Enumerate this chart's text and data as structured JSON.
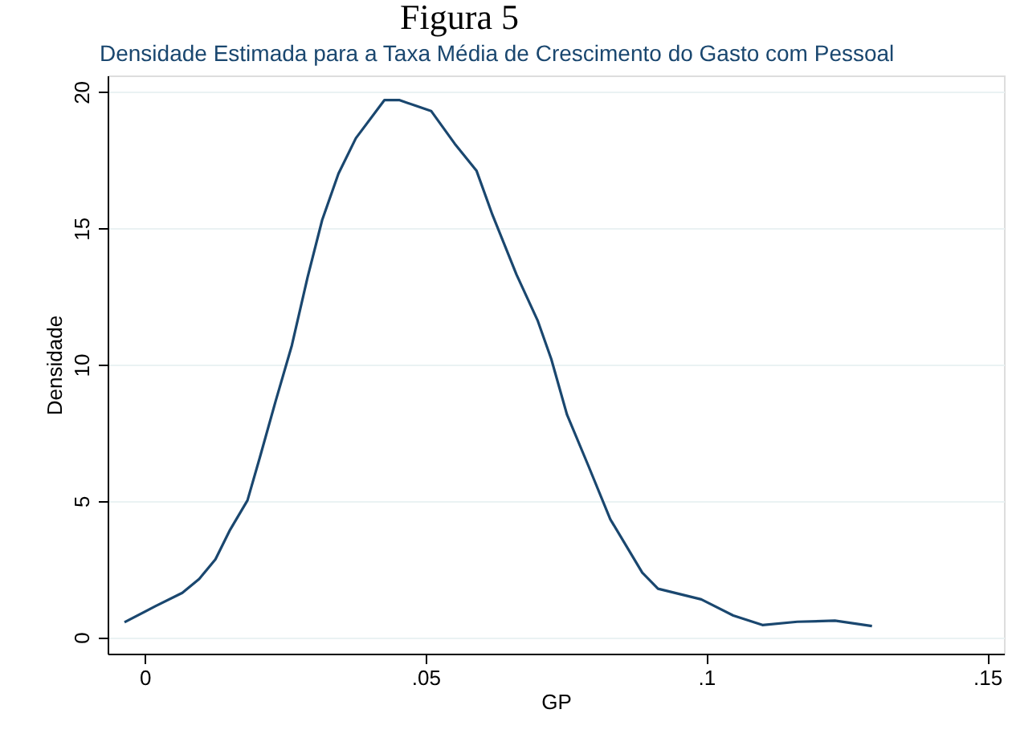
{
  "chart_data": {
    "type": "line",
    "title": "Densidade Estimada para a Taxa Média de Crescimento do Gasto com Pessoal",
    "xlabel": "GP",
    "ylabel": "Densidade",
    "annotations": [
      "Figura 5"
    ],
    "x": [
      -0.0036,
      0.0019,
      0.0067,
      0.0097,
      0.0126,
      0.0152,
      0.0183,
      0.0205,
      0.0233,
      0.0262,
      0.029,
      0.0316,
      0.0345,
      0.0376,
      0.0427,
      0.0453,
      0.0481,
      0.051,
      0.0552,
      0.0591,
      0.0619,
      0.0662,
      0.07,
      0.0724,
      0.0752,
      0.079,
      0.0829,
      0.0886,
      0.0914,
      0.0991,
      0.1048,
      0.11,
      0.1162,
      0.1229,
      0.1295
    ],
    "series": [
      {
        "color": "#1a476f",
        "values": [
          0.55,
          1.14,
          1.63,
          2.14,
          2.86,
          3.94,
          5.02,
          6.59,
          8.65,
          10.7,
          13.2,
          15.3,
          17.0,
          18.3,
          19.7,
          19.7,
          19.5,
          19.3,
          18.1,
          17.1,
          15.5,
          13.3,
          11.6,
          10.2,
          8.16,
          6.29,
          4.33,
          2.37,
          1.78,
          1.39,
          0.8,
          0.45,
          0.57,
          0.61,
          0.41
        ]
      }
    ],
    "xlim": [
      -0.0066,
      0.153
    ],
    "ylim": [
      -0.6,
      20.6
    ],
    "xticks": [
      {
        "value": 0,
        "label": "0"
      },
      {
        "value": 0.05,
        "label": ".05"
      },
      {
        "value": 0.1,
        "label": ".1"
      },
      {
        "value": 0.15,
        "label": ".15"
      }
    ],
    "yticks": [
      0,
      5,
      10,
      15,
      20
    ],
    "grid": "y",
    "line_style": "solid",
    "marker": "none",
    "legend": false
  }
}
